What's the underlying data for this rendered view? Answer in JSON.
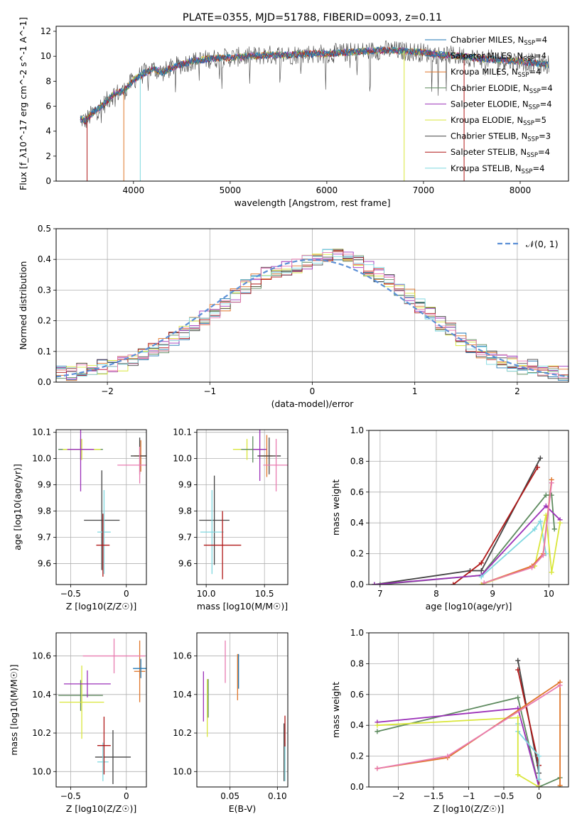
{
  "chart_data": [
    {
      "type": "line",
      "title": "PLATE=0355, MJD=51788, FIBERID=0093, z=0.11",
      "xlabel": "wavelength [Angstrom, rest frame]",
      "ylabel": "Flux [f_λ10^-17 erg cm^-2 s^-1 A^-1]",
      "xlim": [
        3200,
        8500
      ],
      "ylim": [
        0,
        12.4
      ],
      "xticks": [
        4000,
        5000,
        6000,
        7000,
        8000
      ],
      "yticks": [
        0,
        2,
        4,
        6,
        8,
        10,
        12
      ],
      "legend_position": "right",
      "legend": [
        {
          "label": "Chabrier MILES, N_SSP=4",
          "color": "#1f77b4"
        },
        {
          "label": "Salpeter MILES, N_SSP=4",
          "color": "#1f77b4"
        },
        {
          "label": "Kroupa MILES, N_SSP=4",
          "color": "#e0762a"
        },
        {
          "label": "Chabrier ELODIE, N_SSP=4",
          "color": "#5d8a5e"
        },
        {
          "label": "Salpeter ELODIE, N_SSP=4",
          "color": "#9b30b8"
        },
        {
          "label": "Kroupa ELODIE, N_SSP=5",
          "color": "#d9e63a"
        },
        {
          "label": "Chabrier STELIB, N_SSP=3",
          "color": "#444444"
        },
        {
          "label": "Salpeter STELIB, N_SSP=4",
          "color": "#b01818"
        },
        {
          "label": "Kroupa STELIB, N_SSP=4",
          "color": "#7fd8e0"
        }
      ],
      "spectrum_trend": {
        "x": [
          3450,
          3500,
          3600,
          3700,
          3800,
          3900,
          4000,
          4100,
          4200,
          4300,
          4400,
          4600,
          4800,
          5000,
          5200,
          5400,
          5600,
          5800,
          6000,
          6200,
          6400,
          6600,
          6800,
          7000,
          7200,
          7400,
          7600,
          7800,
          8000,
          8200,
          8300
        ],
        "y": [
          5.0,
          4.8,
          5.6,
          6.2,
          7.0,
          7.2,
          8.1,
          8.6,
          9.0,
          8.7,
          9.1,
          9.6,
          9.8,
          9.9,
          10.0,
          10.1,
          10.1,
          10.2,
          10.2,
          10.3,
          10.4,
          10.5,
          10.4,
          10.3,
          10.1,
          10.0,
          9.8,
          9.7,
          9.6,
          9.4,
          9.3
        ]
      }
    },
    {
      "type": "histogram",
      "xlabel": "(data-model)/error",
      "ylabel": "Normed distribution",
      "xlim": [
        -2.5,
        2.5
      ],
      "ylim": [
        0,
        0.5
      ],
      "xticks": [
        -2,
        -1,
        0,
        1,
        2
      ],
      "yticks": [
        0.0,
        0.1,
        0.2,
        0.3,
        0.4,
        0.5
      ],
      "legend_position": "top-right",
      "legend": [
        {
          "label": "𝒩(0, 1)",
          "color": "#5b8fd6"
        }
      ],
      "bin_edges": [
        -2.5,
        -2.4,
        -2.3,
        -2.2,
        -2.1,
        -2.0,
        -1.9,
        -1.8,
        -1.7,
        -1.6,
        -1.5,
        -1.4,
        -1.3,
        -1.2,
        -1.1,
        -1.0,
        -0.9,
        -0.8,
        -0.7,
        -0.6,
        -0.5,
        -0.4,
        -0.3,
        -0.2,
        -0.1,
        0.0,
        0.1,
        0.2,
        0.3,
        0.4,
        0.5,
        0.6,
        0.7,
        0.8,
        0.9,
        1.0,
        1.1,
        1.2,
        1.3,
        1.4,
        1.5,
        1.6,
        1.7,
        1.8,
        1.9,
        2.0,
        2.1,
        2.2,
        2.3,
        2.4,
        2.5
      ],
      "density": [
        0.03,
        0.03,
        0.04,
        0.04,
        0.05,
        0.05,
        0.06,
        0.07,
        0.09,
        0.11,
        0.12,
        0.14,
        0.16,
        0.19,
        0.21,
        0.23,
        0.25,
        0.28,
        0.31,
        0.33,
        0.35,
        0.36,
        0.37,
        0.38,
        0.39,
        0.4,
        0.41,
        0.42,
        0.41,
        0.39,
        0.37,
        0.35,
        0.33,
        0.3,
        0.28,
        0.25,
        0.22,
        0.19,
        0.17,
        0.14,
        0.12,
        0.1,
        0.08,
        0.07,
        0.06,
        0.05,
        0.05,
        0.04,
        0.03,
        0.03
      ]
    },
    {
      "type": "scatter",
      "xlabel": "Z [log10(Z/Z☉)]",
      "ylabel": "age  [log10(age/yr)]",
      "xlim": [
        -0.63,
        0.18
      ],
      "ylim": [
        9.52,
        10.11
      ],
      "xticks": [
        -0.5,
        0.0
      ],
      "yticks": [
        9.6,
        9.7,
        9.8,
        9.9,
        10.0,
        10.1
      ],
      "points": [
        {
          "x": -0.41,
          "xerr": 0.2,
          "y": 10.035,
          "yerr": 0.04,
          "color": "#5d8a5e"
        },
        {
          "x": -0.4,
          "xerr": 0.17,
          "y": 10.035,
          "yerr": 0.04,
          "color": "#d9e63a"
        },
        {
          "x": -0.41,
          "xerr": 0.12,
          "y": 10.035,
          "yerr": 0.16,
          "color": "#9b30b8"
        },
        {
          "x": 0.13,
          "xerr": 0.06,
          "y": 10.01,
          "yerr": 0.06,
          "color": "#e0762a"
        },
        {
          "x": 0.12,
          "xerr": 0.08,
          "y": 10.01,
          "yerr": 0.07,
          "color": "#444444"
        },
        {
          "x": 0.12,
          "xerr": 0.2,
          "y": 9.975,
          "yerr": 0.07,
          "color": "#e87bb0"
        },
        {
          "x": -0.22,
          "xerr": 0.16,
          "y": 9.765,
          "yerr": 0.19,
          "color": "#444444"
        },
        {
          "x": -0.2,
          "xerr": 0.06,
          "y": 9.72,
          "yerr": 0.16,
          "color": "#7fd8e0"
        },
        {
          "x": -0.21,
          "xerr": 0.06,
          "y": 9.67,
          "yerr": 0.12,
          "color": "#b01818"
        }
      ]
    },
    {
      "type": "scatter",
      "xlabel": "mass [log10(M/M☉)]",
      "ylabel": "",
      "xlim": [
        9.92,
        10.7
      ],
      "ylim": [
        9.52,
        10.11
      ],
      "xticks": [
        10.0,
        10.5
      ],
      "yticks": [
        9.6,
        9.7,
        9.8,
        9.9,
        10.0,
        10.1
      ],
      "points": [
        {
          "x": 10.35,
          "xerr": 0.12,
          "y": 10.035,
          "yerr": 0.04,
          "color": "#d9e63a"
        },
        {
          "x": 10.4,
          "xerr": 0.1,
          "y": 10.035,
          "yerr": 0.05,
          "color": "#5d8a5e"
        },
        {
          "x": 10.46,
          "xerr": 0.06,
          "y": 10.035,
          "yerr": 0.12,
          "color": "#9b30b8"
        },
        {
          "x": 10.52,
          "xerr": 0.05,
          "y": 10.01,
          "yerr": 0.08,
          "color": "#e0762a"
        },
        {
          "x": 10.54,
          "xerr": 0.1,
          "y": 10.01,
          "yerr": 0.07,
          "color": "#444444"
        },
        {
          "x": 10.6,
          "xerr": 0.11,
          "y": 9.975,
          "yerr": 0.1,
          "color": "#e87bb0"
        },
        {
          "x": 10.07,
          "xerr": 0.13,
          "y": 9.765,
          "yerr": 0.17,
          "color": "#444444"
        },
        {
          "x": 10.05,
          "xerr": 0.1,
          "y": 9.72,
          "yerr": 0.16,
          "color": "#7fd8e0"
        },
        {
          "x": 10.14,
          "xerr": 0.16,
          "y": 9.67,
          "yerr": 0.13,
          "color": "#b01818"
        }
      ]
    },
    {
      "type": "line",
      "xlabel": "age  [log10(age/yr)]",
      "ylabel": "mass weight",
      "xlim": [
        6.8,
        10.35
      ],
      "ylim": [
        0,
        1.0
      ],
      "xticks": [
        7,
        8,
        9,
        10
      ],
      "yticks": [
        0.0,
        0.2,
        0.4,
        0.6,
        0.8,
        1.0
      ],
      "series": [
        {
          "color": "#444444",
          "x": [
            6.9,
            8.6,
            8.8,
            9.85
          ],
          "y": [
            0.0,
            0.09,
            0.09,
            0.82
          ]
        },
        {
          "color": "#b01818",
          "x": [
            8.3,
            8.8,
            9.8
          ],
          "y": [
            0.0,
            0.14,
            0.76
          ]
        },
        {
          "color": "#5d8a5e",
          "x": [
            7.0,
            8.8,
            9.95,
            10.05,
            10.1
          ],
          "y": [
            0.0,
            0.06,
            0.58,
            0.58,
            0.36
          ]
        },
        {
          "color": "#9b30b8",
          "x": [
            6.9,
            8.8,
            9.95,
            10.2
          ],
          "y": [
            0.0,
            0.06,
            0.51,
            0.42
          ]
        },
        {
          "color": "#7fd8e0",
          "x": [
            8.8,
            9.75,
            9.85,
            9.95
          ],
          "y": [
            0.05,
            0.36,
            0.41,
            0.2
          ]
        },
        {
          "color": "#d9e63a",
          "x": [
            8.8,
            9.75,
            9.95,
            10.05,
            10.2
          ],
          "y": [
            0.0,
            0.12,
            0.45,
            0.08,
            0.4
          ]
        },
        {
          "color": "#e0762a",
          "x": [
            8.85,
            9.7,
            9.9,
            10.05
          ],
          "y": [
            0.01,
            0.12,
            0.2,
            0.68
          ]
        },
        {
          "color": "#e87bb0",
          "x": [
            8.85,
            9.7,
            9.9,
            10.05
          ],
          "y": [
            0.01,
            0.11,
            0.19,
            0.66
          ]
        }
      ]
    },
    {
      "type": "scatter",
      "xlabel": "Z [log10(Z/Z☉)]",
      "ylabel": "mass [log10(M/M☉)]",
      "xlim": [
        -0.63,
        0.18
      ],
      "ylim": [
        9.92,
        10.72
      ],
      "xticks": [
        -0.5,
        0.0
      ],
      "yticks": [
        10.0,
        10.2,
        10.4,
        10.6
      ],
      "points": [
        {
          "x": -0.41,
          "xerr": 0.2,
          "y": 10.395,
          "yerr": 0.08,
          "color": "#5d8a5e"
        },
        {
          "x": -0.4,
          "xerr": 0.2,
          "y": 10.36,
          "yerr": 0.19,
          "color": "#d9e63a"
        },
        {
          "x": -0.35,
          "xerr": 0.21,
          "y": 10.455,
          "yerr": 0.07,
          "color": "#9b30b8"
        },
        {
          "x": 0.12,
          "xerr": 0.05,
          "y": 10.52,
          "yerr": 0.16,
          "color": "#e0762a"
        },
        {
          "x": 0.13,
          "xerr": 0.07,
          "y": 10.535,
          "yerr": 0.05,
          "color": "#1f77b4"
        },
        {
          "x": -0.11,
          "xerr": 0.28,
          "y": 10.6,
          "yerr": 0.09,
          "color": "#e87bb0"
        },
        {
          "x": -0.12,
          "xerr": 0.16,
          "y": 10.075,
          "yerr": 0.14,
          "color": "#444444"
        },
        {
          "x": -0.21,
          "xerr": 0.05,
          "y": 10.05,
          "yerr": 0.1,
          "color": "#7fd8e0"
        },
        {
          "x": -0.2,
          "xerr": 0.06,
          "y": 10.135,
          "yerr": 0.15,
          "color": "#b01818"
        }
      ]
    },
    {
      "type": "scatter",
      "xlabel": "E(B-V)",
      "ylabel": "",
      "xlim": [
        0.015,
        0.111
      ],
      "ylim": [
        9.92,
        10.72
      ],
      "xticks": [
        0.05,
        0.1
      ],
      "yticks": [
        10.0,
        10.2,
        10.4,
        10.6
      ],
      "points": [
        {
          "x": 0.022,
          "y": 10.39,
          "yerr": 0.13,
          "color": "#9b30b8"
        },
        {
          "x": 0.026,
          "y": 10.33,
          "yerr": 0.15,
          "color": "#d9e63a"
        },
        {
          "x": 0.027,
          "y": 10.38,
          "yerr": 0.1,
          "color": "#5d8a5e"
        },
        {
          "x": 0.045,
          "y": 10.57,
          "yerr": 0.11,
          "color": "#e87bb0"
        },
        {
          "x": 0.058,
          "y": 10.49,
          "yerr": 0.12,
          "color": "#e0762a"
        },
        {
          "x": 0.059,
          "y": 10.52,
          "yerr": 0.09,
          "color": "#1f77b4"
        },
        {
          "x": 0.107,
          "y": 10.1,
          "yerr": 0.15,
          "color": "#444444"
        },
        {
          "x": 0.108,
          "y": 10.05,
          "yerr": 0.1,
          "color": "#7fd8e0"
        },
        {
          "x": 0.108,
          "y": 10.21,
          "yerr": 0.08,
          "color": "#b01818"
        }
      ]
    },
    {
      "type": "line",
      "xlabel": "Z [log10(Z/Z☉)]",
      "ylabel": "mass weight",
      "xlim": [
        -2.42,
        0.42
      ],
      "ylim": [
        0,
        1.0
      ],
      "xticks": [
        -2.0,
        -1.5,
        -1.0,
        -0.5,
        0.0
      ],
      "yticks": [
        0.0,
        0.2,
        0.4,
        0.6,
        0.8,
        1.0
      ],
      "series": [
        {
          "color": "#444444",
          "x": [
            -0.3,
            0.0
          ],
          "y": [
            0.82,
            0.09
          ]
        },
        {
          "color": "#b01818",
          "x": [
            -0.3,
            0.0,
            0.0
          ],
          "y": [
            0.76,
            0.14,
            0.0
          ]
        },
        {
          "color": "#5d8a5e",
          "x": [
            -2.3,
            -0.3,
            0.0,
            0.3,
            0.3
          ],
          "y": [
            0.36,
            0.58,
            0.0,
            0.06,
            0.0
          ]
        },
        {
          "color": "#9b30b8",
          "x": [
            -2.3,
            -0.3,
            0.0
          ],
          "y": [
            0.42,
            0.51,
            0.0
          ]
        },
        {
          "color": "#7fd8e0",
          "x": [
            -0.3,
            -0.3,
            0.0,
            0.0
          ],
          "y": [
            0.41,
            0.36,
            0.2,
            0.05
          ]
        },
        {
          "color": "#d9e63a",
          "x": [
            -2.3,
            -0.3,
            -0.3,
            0.0
          ],
          "y": [
            0.4,
            0.45,
            0.08,
            0.0
          ]
        },
        {
          "color": "#e0762a",
          "x": [
            -2.3,
            -1.3,
            0.3,
            0.3
          ],
          "y": [
            0.12,
            0.19,
            0.68,
            0.01
          ]
        },
        {
          "color": "#e87bb0",
          "x": [
            -2.3,
            -1.3,
            0.3
          ],
          "y": [
            0.12,
            0.2,
            0.66
          ]
        }
      ]
    }
  ]
}
